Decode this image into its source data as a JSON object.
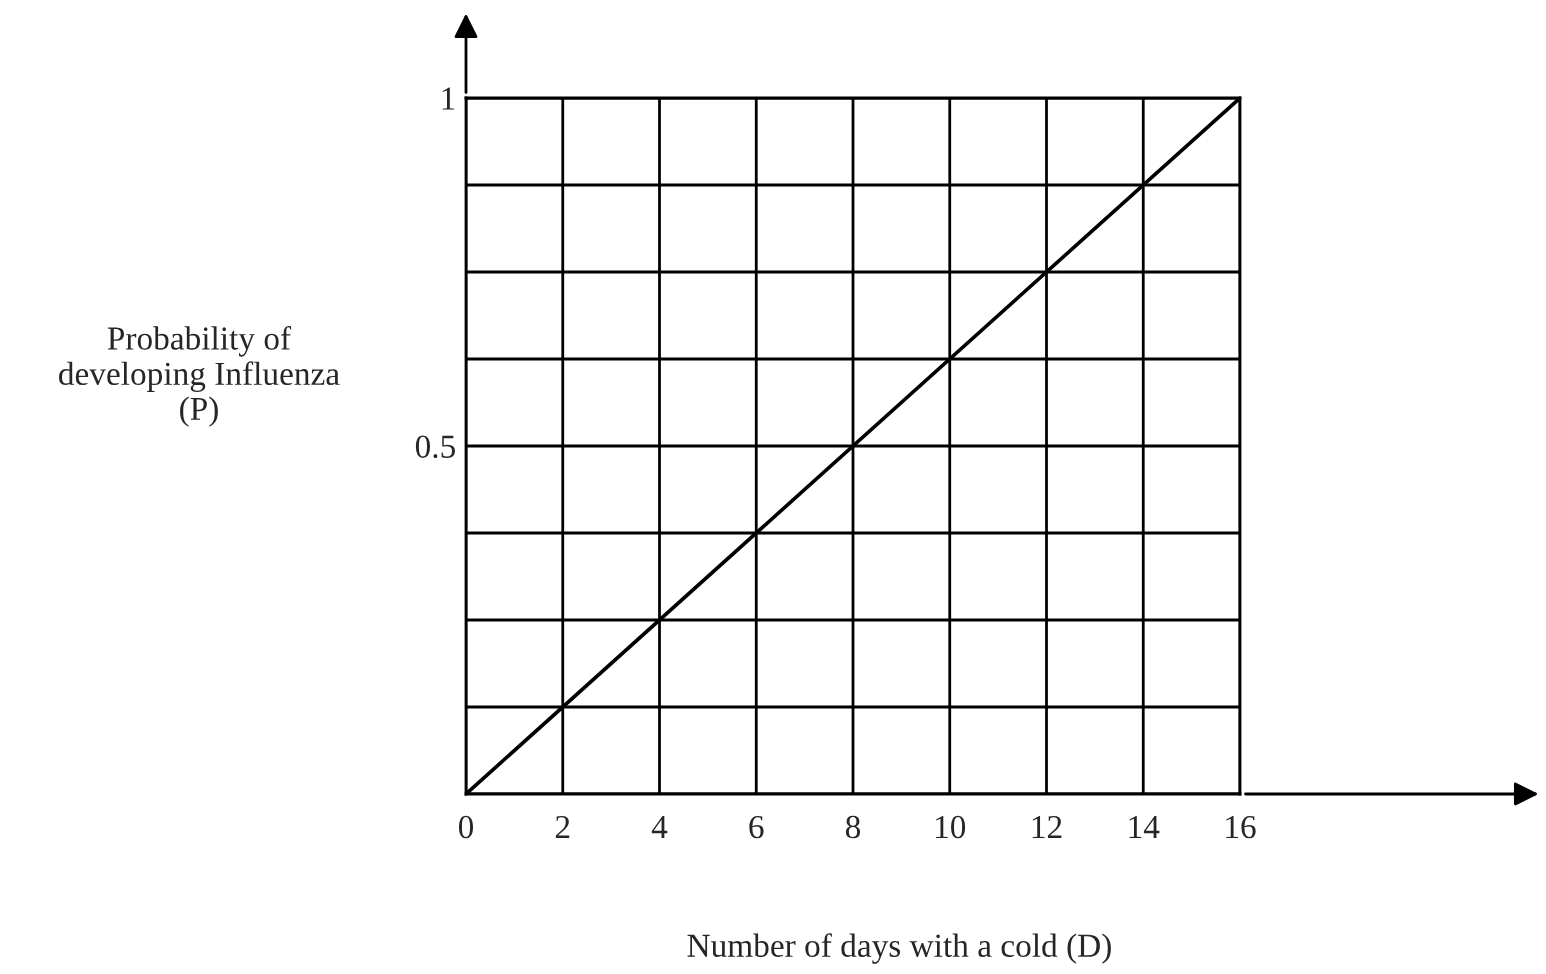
{
  "chart_data": {
    "type": "line",
    "xlabel": "Number of days with a cold (D)",
    "ylabel": "Probability of\ndeveloping Influenza\n(P)",
    "x": [
      0,
      16
    ],
    "series": [
      {
        "color": "#000000",
        "values": [
          0,
          1
        ]
      }
    ],
    "xlim": [
      0,
      16
    ],
    "ylim": [
      0,
      1
    ],
    "xticks": [
      0,
      2,
      4,
      6,
      8,
      10,
      12,
      14,
      16
    ],
    "yticks": [
      {
        "value": 0,
        "label": null
      },
      {
        "value": 0.125,
        "label": null
      },
      {
        "value": 0.25,
        "label": null
      },
      {
        "value": 0.375,
        "label": null
      },
      {
        "value": 0.5,
        "label": "0.5"
      },
      {
        "value": 0.625,
        "label": null
      },
      {
        "value": 0.75,
        "label": null
      },
      {
        "value": 0.875,
        "label": null
      },
      1
    ],
    "grid": true,
    "marker": "none",
    "line_style": "solid",
    "legend": false
  }
}
